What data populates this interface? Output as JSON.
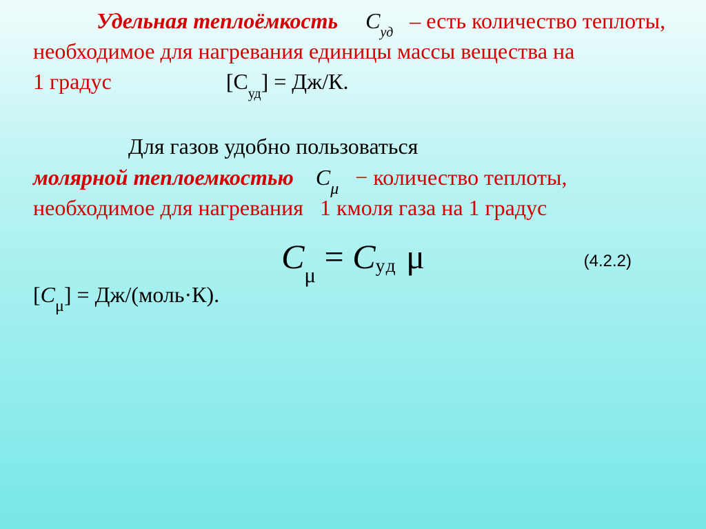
{
  "colors": {
    "text_red": "#d40000",
    "text_black": "#000000",
    "bg_top": "#f0fcfc",
    "bg_bottom": "#78e7e7"
  },
  "p1": {
    "term": "Удельная теплоёмкость",
    "sym_html": "С<sub>уд</sub>",
    "rest1": "– есть количество теплоты, необходимое для нагревания единицы массы вещества на",
    "line4_left": "1 градус",
    "unit_eq": "[С<sub>уд</sub>] = Дж/К."
  },
  "p2": {
    "intro": "Для газов удобно пользоваться",
    "term": "молярной теплоемкостью",
    "sym_html": "С<sub class=\"sub-mu\">μ</sub>",
    "rest": "− количество теплоты, необходимое для нагревания",
    "rest2": "1 кмоля газа на 1 градус"
  },
  "equation": {
    "text": "C<sub class=\"sub-mu-lg\">μ</sub> <span class=\"nonital\">=</span> C<span class=\"sub-ud\">уд</span> <span class=\"nonital\">μ</span>",
    "number": "(4.2.2)"
  },
  "units_line": "[<span class=\"sym\">С</span><sub class=\"sub-mu\">μ</sub>] = Дж/(моль·К)."
}
